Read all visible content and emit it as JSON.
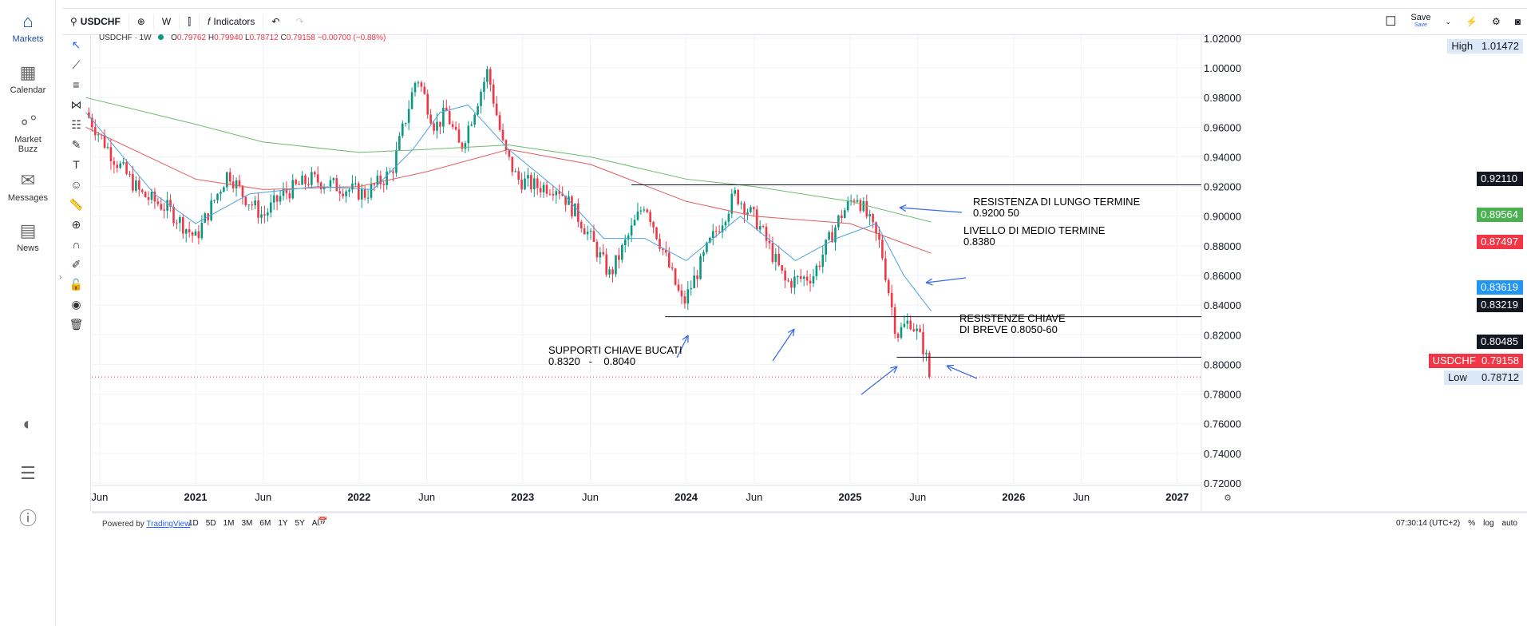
{
  "sidebar": {
    "items": [
      {
        "label": "Markets",
        "icon": "home-icon"
      },
      {
        "label": "Calendar",
        "icon": "calendar-icon"
      },
      {
        "label": "Market Buzz",
        "icon": "bubbles-icon"
      },
      {
        "label": "Messages",
        "icon": "envelope-icon"
      },
      {
        "label": "News",
        "icon": "newspaper-icon"
      }
    ]
  },
  "toolbar": {
    "symbol": "USDCHF",
    "interval": "W",
    "indicators": "Indicators",
    "save": "Save",
    "save_sub": "Save"
  },
  "legend": {
    "title": "USDCHF · 1W",
    "o_label": "O",
    "o": "0.79762",
    "h_label": "H",
    "h": "0.79940",
    "l_label": "L",
    "l": "0.78712",
    "c_label": "C",
    "c": "0.79158",
    "change": "−0.00700 (−0.88%)"
  },
  "price_labels": {
    "high_label": "High",
    "high": "1.01472",
    "r1": "0.92110",
    "ma_green": "0.89564",
    "ma_red": "0.87497",
    "ma_blue": "0.83619",
    "s1": "0.83219",
    "s2": "0.80485",
    "sym": "USDCHF",
    "last": "0.79158",
    "low_label": "Low",
    "low": "0.78712"
  },
  "annotations": {
    "a1": "RESISTENZA DI LUNGO TERMINE\n0.9200 50",
    "a2": "LIVELLO DI MEDIO TERMINE\n0.8380",
    "a3": "SUPPORTI CHIAVE BUCATI\n0.8320   -    0.8040",
    "a4": "RESISTENZE CHIAVE\nDI BREVE 0.8050-60"
  },
  "bottom": {
    "powered": "Powered by",
    "brand": "TradingView",
    "ranges": [
      "1D",
      "5D",
      "1M",
      "3M",
      "6M",
      "1Y",
      "5Y",
      "All"
    ],
    "time": "07:30:14 (UTC+2)",
    "pct": "%",
    "log": "log",
    "auto": "auto"
  },
  "colors": {
    "up": "#089981",
    "down": "#f23645",
    "ma_fast": "#4aa3e0",
    "ma_mid": "#e05c5c",
    "ma_slow": "#6fb86f",
    "arrows": "#3a6ee8"
  },
  "chart_data": {
    "type": "candlestick",
    "symbol": "USDCHF",
    "interval": "1W",
    "y_ticks": [
      "1.02000",
      "1.00000",
      "0.98000",
      "0.96000",
      "0.94000",
      "0.92000",
      "0.90000",
      "0.88000",
      "0.86000",
      "0.84000",
      "0.82000",
      "0.80000",
      "0.78000",
      "0.76000",
      "0.74000",
      "0.72000"
    ],
    "ylim": [
      0.72,
      1.02
    ],
    "x_ticks": [
      [
        "2020-06-01",
        "Jun"
      ],
      [
        "2021-01-01",
        "2021"
      ],
      [
        "2021-06-01",
        "Jun"
      ],
      [
        "2022-01-01",
        "2022"
      ],
      [
        "2022-06-01",
        "Jun"
      ],
      [
        "2023-01-01",
        "2023"
      ],
      [
        "2023-06-01",
        "Jun"
      ],
      [
        "2024-01-01",
        "2024"
      ],
      [
        "2024-06-01",
        "Jun"
      ],
      [
        "2025-01-01",
        "2025"
      ],
      [
        "2025-06-01",
        "Jun"
      ],
      [
        "2026-01-01",
        "2026"
      ],
      [
        "2026-06-01",
        "Jun"
      ],
      [
        "2027-01-01",
        "2027"
      ]
    ],
    "close_path": [
      [
        "2020-05-01",
        0.97
      ],
      [
        "2020-07-01",
        0.94
      ],
      [
        "2020-09-01",
        0.915
      ],
      [
        "2020-11-01",
        0.905
      ],
      [
        "2021-01-01",
        0.885
      ],
      [
        "2021-03-15",
        0.93
      ],
      [
        "2021-04-15",
        0.915
      ],
      [
        "2021-06-01",
        0.9
      ],
      [
        "2021-07-15",
        0.915
      ],
      [
        "2021-09-15",
        0.925
      ],
      [
        "2021-11-15",
        0.92
      ],
      [
        "2022-01-15",
        0.915
      ],
      [
        "2022-03-15",
        0.93
      ],
      [
        "2022-05-10",
        0.995
      ],
      [
        "2022-06-20",
        0.96
      ],
      [
        "2022-07-15",
        0.97
      ],
      [
        "2022-08-15",
        0.945
      ],
      [
        "2022-10-15",
        0.998
      ],
      [
        "2022-11-20",
        0.945
      ],
      [
        "2022-12-20",
        0.925
      ],
      [
        "2023-02-01",
        0.92
      ],
      [
        "2023-03-20",
        0.92
      ],
      [
        "2023-05-15",
        0.895
      ],
      [
        "2023-07-15",
        0.86
      ],
      [
        "2023-10-01",
        0.91
      ],
      [
        "2023-12-25",
        0.84
      ],
      [
        "2024-02-20",
        0.88
      ],
      [
        "2024-04-20",
        0.915
      ],
      [
        "2024-06-10",
        0.895
      ],
      [
        "2024-08-10",
        0.855
      ],
      [
        "2024-10-10",
        0.86
      ],
      [
        "2024-12-10",
        0.9
      ],
      [
        "2025-01-15",
        0.915
      ],
      [
        "2025-03-10",
        0.88
      ],
      [
        "2025-04-15",
        0.82
      ],
      [
        "2025-05-15",
        0.83
      ],
      [
        "2025-06-10",
        0.815
      ],
      [
        "2025-07-01",
        0.7916
      ]
    ],
    "ma_fast": [
      [
        "2020-05-01",
        0.97
      ],
      [
        "2020-10-01",
        0.915
      ],
      [
        "2021-01-01",
        0.895
      ],
      [
        "2021-05-01",
        0.915
      ],
      [
        "2021-10-01",
        0.92
      ],
      [
        "2022-02-01",
        0.918
      ],
      [
        "2022-05-01",
        0.945
      ],
      [
        "2022-07-01",
        0.97
      ],
      [
        "2022-09-01",
        0.975
      ],
      [
        "2022-12-01",
        0.945
      ],
      [
        "2023-04-01",
        0.915
      ],
      [
        "2023-07-01",
        0.885
      ],
      [
        "2023-10-01",
        0.885
      ],
      [
        "2024-01-01",
        0.87
      ],
      [
        "2024-05-01",
        0.9
      ],
      [
        "2024-09-01",
        0.87
      ],
      [
        "2024-12-01",
        0.885
      ],
      [
        "2025-03-01",
        0.895
      ],
      [
        "2025-05-01",
        0.86
      ],
      [
        "2025-07-01",
        0.836
      ]
    ],
    "ma_mid": [
      [
        "2020-05-01",
        0.96
      ],
      [
        "2021-01-01",
        0.925
      ],
      [
        "2021-06-01",
        0.918
      ],
      [
        "2022-01-01",
        0.92
      ],
      [
        "2022-06-01",
        0.93
      ],
      [
        "2022-12-01",
        0.945
      ],
      [
        "2023-06-01",
        0.935
      ],
      [
        "2024-01-01",
        0.91
      ],
      [
        "2024-06-01",
        0.9
      ],
      [
        "2025-01-01",
        0.895
      ],
      [
        "2025-07-01",
        0.875
      ]
    ],
    "ma_slow": [
      [
        "2020-05-01",
        0.98
      ],
      [
        "2021-01-01",
        0.962
      ],
      [
        "2021-06-01",
        0.95
      ],
      [
        "2022-01-01",
        0.943
      ],
      [
        "2022-06-01",
        0.945
      ],
      [
        "2022-12-01",
        0.948
      ],
      [
        "2023-06-01",
        0.94
      ],
      [
        "2024-01-01",
        0.925
      ],
      [
        "2024-06-01",
        0.92
      ],
      [
        "2025-01-01",
        0.91
      ],
      [
        "2025-07-01",
        0.896
      ]
    ],
    "hlines": [
      [
        "2023-09-01",
        0.9211
      ],
      [
        "2023-11-15",
        0.83219
      ],
      [
        "2025-04-15",
        0.80485
      ]
    ],
    "last_price": 0.79158
  }
}
